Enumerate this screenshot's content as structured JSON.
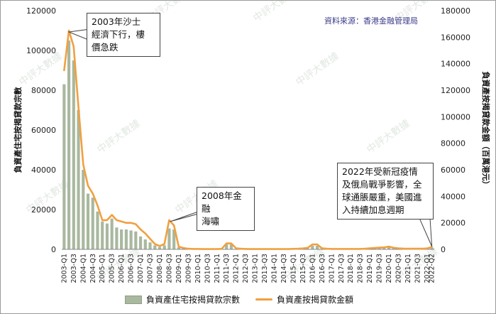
{
  "source_note": "資料來源：香港金融管理局",
  "chart_data": {
    "type": "bar+line",
    "categories": [
      "2003-Q1",
      "2003-Q2",
      "2003-Q3",
      "2003-Q4",
      "2004-Q1",
      "2004-Q2",
      "2004-Q3",
      "2004-Q4",
      "2005-Q1",
      "2005-Q2",
      "2005-Q3",
      "2005-Q4",
      "2006-Q1",
      "2006-Q2",
      "2006-Q3",
      "2006-Q4",
      "2007-Q1",
      "2007-Q2",
      "2007-Q3",
      "2007-Q4",
      "2008-Q1",
      "2008-Q2",
      "2008-Q3",
      "2008-Q4",
      "2009-Q1",
      "2009-Q2",
      "2009-Q3",
      "2009-Q4",
      "2010-Q1",
      "2010-Q2",
      "2010-Q3",
      "2010-Q4",
      "2011-Q1",
      "2011-Q2",
      "2011-Q3",
      "2011-Q4",
      "2012-Q1",
      "2012-Q2",
      "2012-Q3",
      "2012-Q4",
      "2013-Q1",
      "2013-Q2",
      "2013-Q3",
      "2013-Q4",
      "2014-Q1",
      "2014-Q2",
      "2014-Q3",
      "2014-Q4",
      "2015-Q1",
      "2015-Q2",
      "2015-Q3",
      "2015-Q4",
      "2016-Q1",
      "2016-Q2",
      "2016-Q3",
      "2016-Q4",
      "2017-Q1",
      "2017-Q2",
      "2017-Q3",
      "2017-Q4",
      "2018-Q1",
      "2018-Q2",
      "2018-Q3",
      "2018-Q4",
      "2019-Q1",
      "2019-Q2",
      "2019-Q3",
      "2019-Q4",
      "2020-Q1",
      "2020-Q2",
      "2020-Q3",
      "2020-Q4",
      "2021-Q1",
      "2021-Q2",
      "2021-Q3",
      "2021-Q4",
      "2022-Q1",
      "2022-Q2"
    ],
    "x_tick_labels": [
      "2003-Q1",
      "2003-Q3",
      "2004-Q1",
      "2004-Q3",
      "2005-Q1",
      "2005-Q3",
      "2006-Q1",
      "2006-Q3",
      "2007-Q1",
      "2007-Q3",
      "2008-Q1",
      "2008-Q3",
      "2009-Q1",
      "2009-Q3",
      "2010-Q1",
      "2010-Q3",
      "2011-Q1",
      "2011-Q3",
      "2012-Q1",
      "2012-Q3",
      "2013-Q1",
      "2013-Q3",
      "2014-Q1",
      "2014-Q3",
      "2015-Q1",
      "2015-Q3",
      "2016-Q1",
      "2016-Q3",
      "2017-Q1",
      "2017-Q3",
      "2018-Q1",
      "2018-Q3",
      "2019-Q1",
      "2019-Q3",
      "2020-Q1",
      "2020-Q3",
      "2021-Q1",
      "2021-Q3",
      "2022-Q1",
      "2022-Q2"
    ],
    "series": [
      {
        "name": "負資產住宅按揭貸款宗數",
        "axis": "left",
        "kind": "bar",
        "color": "#a9b89f",
        "values": [
          83000,
          105000,
          95000,
          70000,
          40000,
          28000,
          26000,
          19000,
          14000,
          13000,
          15500,
          11000,
          10000,
          10000,
          9500,
          9000,
          6500,
          5000,
          3500,
          2000,
          1200,
          2000,
          10500,
          10000,
          1000,
          500,
          300,
          200,
          150,
          100,
          100,
          100,
          100,
          200,
          2500,
          2500,
          300,
          200,
          150,
          100,
          100,
          100,
          100,
          100,
          100,
          100,
          100,
          100,
          200,
          200,
          300,
          500,
          1800,
          1800,
          300,
          200,
          100,
          100,
          100,
          100,
          100,
          100,
          100,
          200,
          400,
          500,
          800,
          1000,
          1200,
          600,
          400,
          300,
          200,
          200,
          200,
          200,
          300,
          800
        ]
      },
      {
        "name": "負資產按揭貸款金額",
        "axis": "right",
        "kind": "line",
        "color": "#f0a040",
        "values": [
          135000,
          165000,
          153000,
          107000,
          64000,
          48000,
          42000,
          33000,
          22000,
          22000,
          26000,
          22000,
          21000,
          20000,
          20000,
          19000,
          15000,
          12000,
          8000,
          4000,
          2500,
          4000,
          22000,
          18000,
          2000,
          1000,
          500,
          300,
          300,
          200,
          200,
          200,
          200,
          400,
          4500,
          4500,
          800,
          500,
          300,
          200,
          200,
          200,
          200,
          200,
          200,
          200,
          200,
          200,
          400,
          500,
          700,
          1200,
          3700,
          3700,
          800,
          500,
          300,
          300,
          300,
          300,
          300,
          300,
          300,
          500,
          800,
          1000,
          1300,
          1500,
          2100,
          1200,
          800,
          600,
          500,
          500,
          500,
          500,
          700,
          1800
        ]
      }
    ],
    "ylabel_left": "負資產住宅按揭貸款宗數",
    "ylabel_right": "負資產按揭貸款金額（百萬港元）",
    "ylim_left": [
      0,
      120000
    ],
    "ylim_right": [
      0,
      180000
    ],
    "yticks_left": [
      "0",
      "20000",
      "40000",
      "60000",
      "80000",
      "100000",
      "120000"
    ],
    "yticks_right": [
      "0",
      "20000",
      "40000",
      "60000",
      "80000",
      "100000",
      "120000",
      "140000",
      "160000",
      "180000"
    ],
    "grid": false,
    "legend_placement": "bottom",
    "annotations": [
      {
        "text": "2003年沙士經濟下行，樓價急跌",
        "target": "2003-Q2"
      },
      {
        "text": "2008年金融海嘯",
        "target": "2008-Q3"
      },
      {
        "text": "2022年受新冠疫情及俄烏戰爭影響，全球通脹嚴重，美國進入持續加息週期",
        "target": "2022-Q2"
      }
    ]
  },
  "callouts": {
    "sars_line1": "2003年沙士",
    "sars_line2": "經濟下行，樓",
    "sars_line3": "價急跌",
    "gfc_line1": "2008年金融",
    "gfc_line2": "海嘯",
    "covid_line1": "2022年受新冠疫情",
    "covid_line2": "及俄烏戰爭影響，全",
    "covid_line3": "球通脹嚴重，美國進",
    "covid_line4": "入持續加息週期"
  },
  "legend": {
    "bar_label": "負資產住宅按揭貸款宗數",
    "line_label": "負資產按揭貸款金額"
  },
  "watermark": "中評大數據"
}
